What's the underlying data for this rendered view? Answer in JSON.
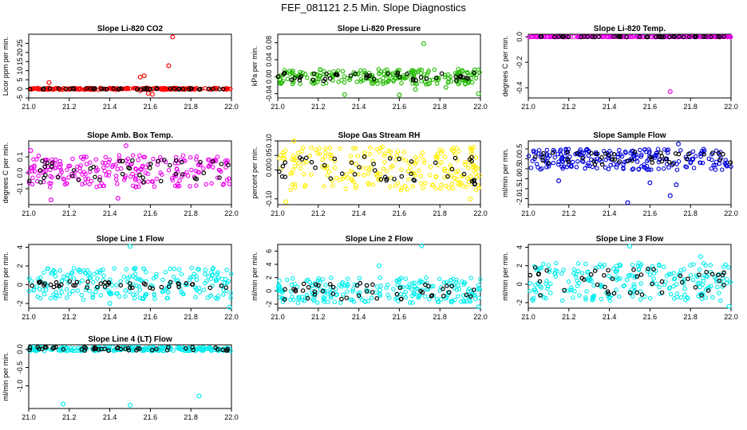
{
  "page_title": "FEF_081121  2.5 Min. Slope Diagnostics",
  "xlim": [
    21.0,
    22.0
  ],
  "chart_data": [
    {
      "type": "scatter",
      "title": "Slope Li-820 CO2",
      "ylabel": "Licor ppm per min.",
      "ylim": [
        -5,
        30
      ],
      "y_ticks": [
        {
          "v": -5,
          "l": "-5"
        },
        {
          "v": 0,
          "l": "0"
        },
        {
          "v": 5,
          "l": "5"
        },
        {
          "v": 10,
          "l": "10"
        },
        {
          "v": 15,
          "l": "15"
        },
        {
          "v": 20,
          "l": "20"
        },
        {
          "v": 25,
          "l": "25"
        }
      ],
      "x_ticks": [
        "21.0",
        "21.2",
        "21.4",
        "21.6",
        "21.8",
        "22.0"
      ],
      "color": "#ff0000",
      "band": [
        -0.5,
        0.5
      ],
      "black_band": [
        -0.3,
        0.3
      ],
      "outliers": [
        [
          21.1,
          3.5
        ],
        [
          21.55,
          6.5
        ],
        [
          21.57,
          7.2
        ],
        [
          21.58,
          0.5
        ],
        [
          21.59,
          -2.5
        ],
        [
          21.61,
          -3.0
        ],
        [
          21.69,
          12.7
        ],
        [
          21.71,
          28.5
        ],
        [
          21.55,
          -1.0
        ]
      ]
    },
    {
      "type": "scatter",
      "title": "Slope Li-820 Pressure",
      "ylabel": "kPa per min.",
      "ylim": [
        -0.05,
        0.1
      ],
      "y_ticks": [
        {
          "v": -0.04,
          "l": "-0.04"
        },
        {
          "v": 0.0,
          "l": "0.00"
        },
        {
          "v": 0.04,
          "l": "0.04"
        },
        {
          "v": 0.08,
          "l": "0.08"
        }
      ],
      "x_ticks": [
        "21.0",
        "21.2",
        "21.4",
        "21.6",
        "21.8",
        "22.0"
      ],
      "color": "#22bb00",
      "band": [
        -0.018,
        0.018
      ],
      "black_band": [
        -0.01,
        0.01
      ],
      "outliers": [
        [
          21.33,
          -0.042
        ],
        [
          21.6,
          -0.043
        ],
        [
          21.72,
          0.078
        ],
        [
          21.99,
          -0.04
        ],
        [
          21.83,
          -0.025
        ],
        [
          21.68,
          -0.03
        ]
      ]
    },
    {
      "type": "scatter",
      "title": "Slope Li-820 Temp.",
      "ylabel": "degrees C per min.",
      "ylim": [
        -0.48,
        0.02
      ],
      "y_ticks": [
        {
          "v": -0.4,
          "l": "-0.4"
        },
        {
          "v": -0.2,
          "l": "-0.2"
        },
        {
          "v": 0.0,
          "l": "0.0"
        }
      ],
      "x_ticks": [
        "21.0",
        "21.2",
        "21.4",
        "21.6",
        "21.8",
        "22.0"
      ],
      "color": "#ee00ee",
      "band": [
        -0.002,
        0.002
      ],
      "black_band": [
        -0.002,
        0.002
      ],
      "outliers": [
        [
          21.7,
          -0.43
        ]
      ]
    },
    {
      "type": "scatter",
      "title": "Slope Amb. Box Temp.",
      "ylabel": "degrees C per min.",
      "ylim": [
        -0.2,
        0.2
      ],
      "y_ticks": [
        {
          "v": -0.1,
          "l": "-0.1"
        },
        {
          "v": 0.0,
          "l": "0.0"
        },
        {
          "v": 0.1,
          "l": "0.1"
        }
      ],
      "x_ticks": [
        "21.0",
        "21.2",
        "21.4",
        "21.6",
        "21.8",
        "22.0"
      ],
      "color": "#ee00ee",
      "band": [
        -0.09,
        0.11
      ],
      "black_band": [
        -0.06,
        0.08
      ],
      "outliers": [
        [
          21.48,
          0.17
        ],
        [
          21.01,
          0.14
        ],
        [
          21.11,
          -0.17
        ],
        [
          21.44,
          -0.16
        ]
      ]
    },
    {
      "type": "scatter",
      "title": "Slope Gas Stream RH",
      "ylabel": "percent per min.",
      "ylim": [
        -0.12,
        0.1
      ],
      "y_ticks": [
        {
          "v": -0.1,
          "l": "-0.10"
        },
        {
          "v": 0.0,
          "l": "0.00"
        },
        {
          "v": 0.05,
          "l": "0.05"
        },
        {
          "v": 0.1,
          "l": "0.10"
        }
      ],
      "x_ticks": [
        "21.0",
        "21.2",
        "21.4",
        "21.6",
        "21.8",
        "22.0"
      ],
      "color": "#ffee00",
      "band": [
        -0.07,
        0.08
      ],
      "black_band": [
        -0.05,
        0.05
      ],
      "outliers": [
        [
          21.04,
          -0.11
        ],
        [
          21.08,
          0.1
        ],
        [
          21.95,
          -0.1
        ]
      ]
    },
    {
      "type": "scatter",
      "title": "Slope Sample Flow",
      "ylabel": "ml/min per min.",
      "ylim": [
        -2.3,
        0.9
      ],
      "y_ticks": [
        {
          "v": -2.0,
          "l": "-2.0"
        },
        {
          "v": -1.5,
          "l": "-1.5"
        },
        {
          "v": -1.0,
          "l": "-1.0"
        },
        {
          "v": -0.5,
          "l": "-0.5"
        },
        {
          "v": 0.0,
          "l": "0.0"
        },
        {
          "v": 0.5,
          "l": "0.5"
        }
      ],
      "x_ticks": [
        "21.0",
        "21.2",
        "21.4",
        "21.6",
        "21.8",
        "22.0"
      ],
      "color": "#0000dd",
      "band": [
        -0.55,
        0.5
      ],
      "black_band": [
        -0.3,
        0.35
      ],
      "outliers": [
        [
          21.49,
          -2.2
        ],
        [
          21.7,
          -1.85
        ],
        [
          21.74,
          0.75
        ],
        [
          21.15,
          -1.1
        ],
        [
          21.6,
          -1.2
        ],
        [
          21.73,
          -1.3
        ]
      ]
    },
    {
      "type": "scatter",
      "title": "Slope Line 1 Flow",
      "ylabel": "ml/min per min.",
      "ylim": [
        -2.5,
        4.3
      ],
      "y_ticks": [
        {
          "v": -2,
          "l": "-2"
        },
        {
          "v": 0,
          "l": "0"
        },
        {
          "v": 2,
          "l": "2"
        },
        {
          "v": 4,
          "l": "4"
        }
      ],
      "x_ticks": [
        "21.0",
        "21.2",
        "21.4",
        "21.6",
        "21.8",
        "22.0"
      ],
      "color": "#00eeee",
      "band": [
        -1.6,
        1.8
      ],
      "black_band": [
        -0.4,
        0.4
      ],
      "outliers": [
        [
          21.5,
          4.1
        ],
        [
          21.99,
          -2.4
        ],
        [
          21.4,
          -2.0
        ]
      ]
    },
    {
      "type": "scatter",
      "title": "Slope Line 2 Flow",
      "ylabel": "ml/min per min.",
      "ylim": [
        -2.6,
        7.0
      ],
      "y_ticks": [
        {
          "v": -2,
          "l": "-2"
        },
        {
          "v": 0,
          "l": "0"
        },
        {
          "v": 2,
          "l": "2"
        },
        {
          "v": 4,
          "l": "4"
        },
        {
          "v": 6,
          "l": "6"
        }
      ],
      "x_ticks": [
        "21.0",
        "21.2",
        "21.4",
        "21.6",
        "21.8",
        "22.0"
      ],
      "color": "#00eeee",
      "band": [
        -1.8,
        2.0
      ],
      "black_band": [
        -1.3,
        1.3
      ],
      "outliers": [
        [
          21.71,
          6.8
        ],
        [
          21.5,
          3.8
        ],
        [
          21.99,
          -2.4
        ]
      ]
    },
    {
      "type": "scatter",
      "title": "Slope Line 3 Flow",
      "ylabel": "ml/min per min.",
      "ylim": [
        -2.6,
        4.3
      ],
      "y_ticks": [
        {
          "v": -2,
          "l": "-2"
        },
        {
          "v": 0,
          "l": "0"
        },
        {
          "v": 2,
          "l": "2"
        },
        {
          "v": 4,
          "l": "4"
        }
      ],
      "x_ticks": [
        "21.0",
        "21.2",
        "21.4",
        "21.6",
        "21.8",
        "22.0"
      ],
      "color": "#00eeee",
      "band": [
        -1.8,
        2.3
      ],
      "black_band": [
        -1.3,
        1.8
      ],
      "outliers": [
        [
          21.5,
          4.1
        ],
        [
          21.99,
          -2.4
        ],
        [
          21.85,
          3.0
        ]
      ]
    },
    {
      "type": "scatter",
      "title": "Slope Line 4 (LT) Flow",
      "ylabel": "ml/min per min.",
      "ylim": [
        -1.62,
        0.12
      ],
      "y_ticks": [
        {
          "v": -1.0,
          "l": "-1.0"
        },
        {
          "v": -0.5,
          "l": "-0.5"
        },
        {
          "v": 0.0,
          "l": "0.0"
        }
      ],
      "x_ticks": [
        "21.0",
        "21.2",
        "21.4",
        "21.6",
        "21.8",
        "22.0"
      ],
      "color": "#00eeee",
      "band": [
        -0.05,
        0.06
      ],
      "black_band": [
        -0.04,
        0.06
      ],
      "outliers": [
        [
          21.17,
          -1.5
        ],
        [
          21.5,
          -1.53
        ],
        [
          21.84,
          -1.28
        ]
      ]
    }
  ]
}
